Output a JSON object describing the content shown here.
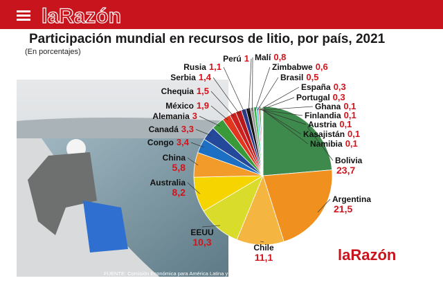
{
  "header": {
    "logo": "laRazón"
  },
  "chart_data": {
    "type": "pie",
    "title": "Participación mundial en recursos de litio, por país, 2021",
    "subtitle": "(En porcentajes)",
    "categories": [
      "Bolivia",
      "Argentina",
      "Chile",
      "EEUU",
      "Australia",
      "China",
      "Congo",
      "Canadá",
      "Alemania",
      "México",
      "Chequia",
      "Serbia",
      "Rusia",
      "Perú",
      "Malí",
      "Zimbabwe",
      "Brasil",
      "España",
      "Portugal",
      "Ghana",
      "Finlandia",
      "Austria",
      "Kasajistán",
      "Namibia"
    ],
    "values": [
      23.7,
      21.5,
      11.1,
      10.3,
      8.2,
      5.8,
      3.4,
      3.3,
      3,
      1.9,
      1.5,
      1.4,
      1.1,
      1,
      0.8,
      0.6,
      0.5,
      0.3,
      0.3,
      0.1,
      0.1,
      0.1,
      0.1,
      0.1
    ],
    "value_labels": [
      "23,7",
      "21,5",
      "11,1",
      "10,3",
      "8,2",
      "5,8",
      "3,4",
      "3,3",
      "3",
      "1,9",
      "1,5",
      "1,4",
      "1,1",
      "1",
      "0,8",
      "0,6",
      "0,5",
      "0,3",
      "0,3",
      "0,1",
      "0,1",
      "0,1",
      "0,1",
      "0,1"
    ],
    "colors": [
      "#3d8a4c",
      "#f0901e",
      "#f4b640",
      "#d9dc2a",
      "#f6d400",
      "#f29a2a",
      "#1c6fc2",
      "#24489a",
      "#3a9a3a",
      "#e2361f",
      "#cf1f1f",
      "#b81818",
      "#2a3a8a",
      "#151515",
      "#9a9a9a",
      "#33bb44",
      "#66ccee",
      "#d04040",
      "#2f8f3f",
      "#e0b020",
      "#5a7ad0",
      "#c03030",
      "#20a0c0",
      "#444444"
    ],
    "source": "FUENTE: Comisión Económica para América Latina y el Caribe (CEPAL), sobre la base de Servicio Geológico de los Estados Unidos (USGS).",
    "footer_logo": "laRazón"
  }
}
